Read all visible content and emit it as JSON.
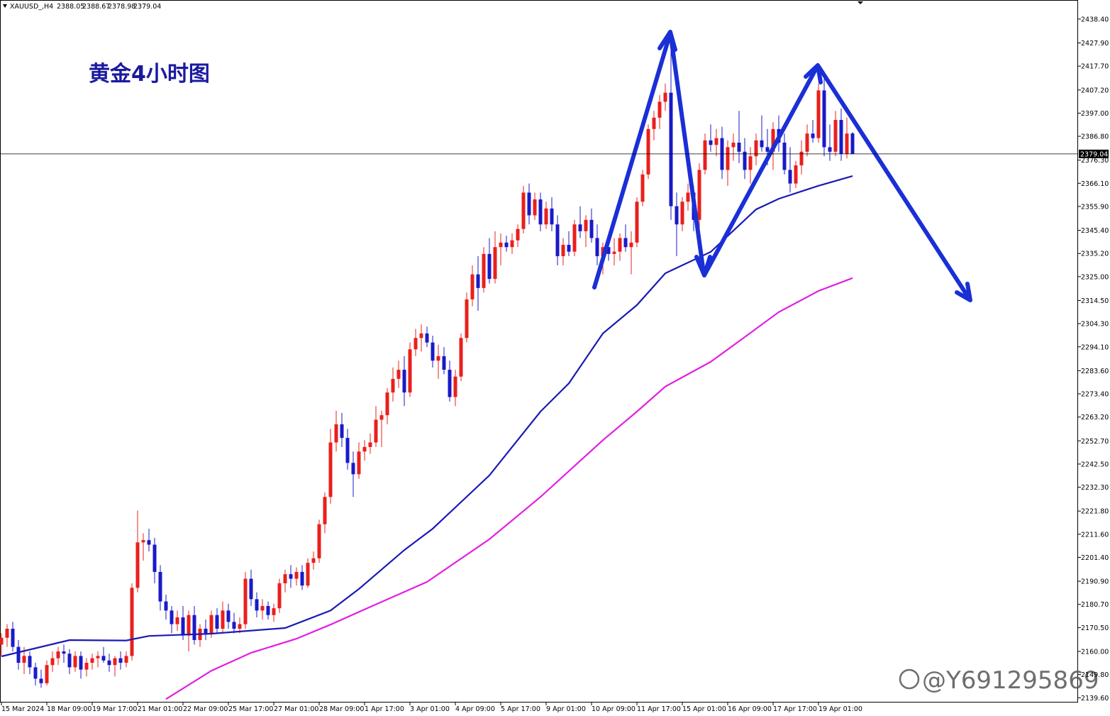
{
  "chart_data": {
    "type": "candlestick",
    "symbol": "XAUUSD_,H4",
    "title": "黄金4小时图",
    "watermark": "@Y691295869",
    "up_color": "#e8201c",
    "down_color": "#1a1ac8",
    "ohlc": [
      [
        2163,
        2168,
        2158,
        2166
      ],
      [
        2166,
        2172,
        2162,
        2170
      ],
      [
        2170,
        2173,
        2160,
        2162
      ],
      [
        2162,
        2165,
        2152,
        2155
      ],
      [
        2155,
        2162,
        2150,
        2158
      ],
      [
        2158,
        2160,
        2150,
        2153
      ],
      [
        2153,
        2155,
        2145,
        2148
      ],
      [
        2148,
        2152,
        2144,
        2146
      ],
      [
        2146,
        2156,
        2145,
        2154
      ],
      [
        2154,
        2160,
        2151,
        2157
      ],
      [
        2157,
        2162,
        2154,
        2160
      ],
      [
        2160,
        2163,
        2155,
        2159
      ],
      [
        2159,
        2161,
        2150,
        2153
      ],
      [
        2153,
        2160,
        2151,
        2158
      ],
      [
        2158,
        2160,
        2148,
        2152
      ],
      [
        2152,
        2157,
        2149,
        2155
      ],
      [
        2155,
        2159,
        2152,
        2157
      ],
      [
        2157,
        2160,
        2153,
        2158
      ],
      [
        2158,
        2162,
        2155,
        2156
      ],
      [
        2156,
        2159,
        2151,
        2154
      ],
      [
        2154,
        2158,
        2149,
        2157
      ],
      [
        2157,
        2160,
        2152,
        2155
      ],
      [
        2155,
        2160,
        2153,
        2158
      ],
      [
        2158,
        2190,
        2156,
        2188
      ],
      [
        2188,
        2222,
        2186,
        2208
      ],
      [
        2208,
        2212,
        2200,
        2209
      ],
      [
        2209,
        2214,
        2204,
        2207
      ],
      [
        2207,
        2210,
        2190,
        2195
      ],
      [
        2195,
        2198,
        2178,
        2182
      ],
      [
        2182,
        2185,
        2174,
        2178
      ],
      [
        2178,
        2180,
        2168,
        2172
      ],
      [
        2172,
        2178,
        2169,
        2175
      ],
      [
        2175,
        2180,
        2165,
        2167
      ],
      [
        2167,
        2178,
        2160,
        2176
      ],
      [
        2176,
        2180,
        2163,
        2165
      ],
      [
        2165,
        2172,
        2162,
        2170
      ],
      [
        2170,
        2174,
        2165,
        2168
      ],
      [
        2168,
        2178,
        2166,
        2176
      ],
      [
        2176,
        2179,
        2168,
        2170
      ],
      [
        2170,
        2182,
        2168,
        2178
      ],
      [
        2178,
        2181,
        2170,
        2173
      ],
      [
        2173,
        2177,
        2168,
        2170
      ],
      [
        2170,
        2175,
        2168,
        2172
      ],
      [
        2172,
        2195,
        2170,
        2192
      ],
      [
        2192,
        2196,
        2180,
        2183
      ],
      [
        2183,
        2186,
        2175,
        2178
      ],
      [
        2178,
        2183,
        2174,
        2180
      ],
      [
        2180,
        2182,
        2174,
        2176
      ],
      [
        2176,
        2181,
        2173,
        2179
      ],
      [
        2179,
        2192,
        2177,
        2190
      ],
      [
        2190,
        2196,
        2186,
        2194
      ],
      [
        2194,
        2198,
        2188,
        2192
      ],
      [
        2192,
        2197,
        2189,
        2195
      ],
      [
        2195,
        2198,
        2187,
        2189
      ],
      [
        2189,
        2201,
        2188,
        2199
      ],
      [
        2199,
        2204,
        2196,
        2201
      ],
      [
        2201,
        2218,
        2199,
        2216
      ],
      [
        2216,
        2230,
        2212,
        2228
      ],
      [
        2228,
        2258,
        2225,
        2252
      ],
      [
        2252,
        2266,
        2248,
        2260
      ],
      [
        2260,
        2265,
        2250,
        2254
      ],
      [
        2254,
        2258,
        2240,
        2243
      ],
      [
        2243,
        2248,
        2228,
        2238
      ],
      [
        2238,
        2252,
        2236,
        2248
      ],
      [
        2248,
        2253,
        2244,
        2250
      ],
      [
        2250,
        2256,
        2247,
        2252
      ],
      [
        2252,
        2268,
        2250,
        2262
      ],
      [
        2262,
        2266,
        2250,
        2264
      ],
      [
        2264,
        2276,
        2260,
        2274
      ],
      [
        2274,
        2285,
        2270,
        2280
      ],
      [
        2280,
        2288,
        2276,
        2284
      ],
      [
        2284,
        2290,
        2268,
        2274
      ],
      [
        2274,
        2296,
        2272,
        2293
      ],
      [
        2293,
        2302,
        2290,
        2298
      ],
      [
        2298,
        2304,
        2292,
        2300
      ],
      [
        2300,
        2303,
        2294,
        2296
      ],
      [
        2296,
        2299,
        2285,
        2288
      ],
      [
        2288,
        2295,
        2280,
        2290
      ],
      [
        2290,
        2294,
        2282,
        2284
      ],
      [
        2284,
        2288,
        2270,
        2272
      ],
      [
        2272,
        2284,
        2268,
        2281
      ],
      [
        2281,
        2300,
        2279,
        2298
      ],
      [
        2298,
        2318,
        2296,
        2315
      ],
      [
        2315,
        2330,
        2312,
        2326
      ],
      [
        2326,
        2334,
        2310,
        2320
      ],
      [
        2320,
        2338,
        2318,
        2335
      ],
      [
        2335,
        2342,
        2322,
        2324
      ],
      [
        2324,
        2345,
        2322,
        2338
      ],
      [
        2338,
        2344,
        2330,
        2340
      ],
      [
        2340,
        2343,
        2336,
        2338
      ],
      [
        2338,
        2344,
        2335,
        2341
      ],
      [
        2341,
        2348,
        2338,
        2346
      ],
      [
        2346,
        2365,
        2344,
        2362
      ],
      [
        2362,
        2366,
        2348,
        2352
      ],
      [
        2352,
        2362,
        2350,
        2359
      ],
      [
        2359,
        2362,
        2345,
        2348
      ],
      [
        2348,
        2358,
        2346,
        2355
      ],
      [
        2355,
        2360,
        2345,
        2348
      ],
      [
        2348,
        2352,
        2330,
        2334
      ],
      [
        2334,
        2342,
        2330,
        2339
      ],
      [
        2339,
        2345,
        2334,
        2336
      ],
      [
        2336,
        2350,
        2334,
        2348
      ],
      [
        2348,
        2356,
        2342,
        2345
      ],
      [
        2345,
        2352,
        2338,
        2350
      ],
      [
        2350,
        2355,
        2340,
        2342
      ],
      [
        2342,
        2348,
        2330,
        2334
      ],
      [
        2334,
        2340,
        2326,
        2338
      ],
      [
        2338,
        2344,
        2332,
        2335
      ],
      [
        2335,
        2342,
        2330,
        2336
      ],
      [
        2336,
        2344,
        2332,
        2342
      ],
      [
        2342,
        2348,
        2336,
        2338
      ],
      [
        2338,
        2345,
        2326,
        2340
      ],
      [
        2340,
        2360,
        2338,
        2358
      ],
      [
        2358,
        2372,
        2356,
        2370
      ],
      [
        2370,
        2392,
        2368,
        2390
      ],
      [
        2390,
        2398,
        2385,
        2395
      ],
      [
        2395,
        2405,
        2390,
        2402
      ],
      [
        2402,
        2410,
        2398,
        2406
      ],
      [
        2406,
        2432,
        2350,
        2356
      ],
      [
        2356,
        2362,
        2334,
        2348
      ],
      [
        2348,
        2360,
        2345,
        2358
      ],
      [
        2358,
        2366,
        2354,
        2362
      ],
      [
        2362,
        2365,
        2345,
        2350
      ],
      [
        2350,
        2375,
        2345,
        2372
      ],
      [
        2372,
        2388,
        2370,
        2385
      ],
      [
        2385,
        2392,
        2380,
        2383
      ],
      [
        2383,
        2390,
        2378,
        2386
      ],
      [
        2386,
        2391,
        2368,
        2372
      ],
      [
        2372,
        2385,
        2365,
        2382
      ],
      [
        2382,
        2388,
        2376,
        2384
      ],
      [
        2384,
        2398,
        2375,
        2380
      ],
      [
        2380,
        2386,
        2368,
        2372
      ],
      [
        2372,
        2382,
        2366,
        2378
      ],
      [
        2378,
        2388,
        2374,
        2385
      ],
      [
        2385,
        2396,
        2380,
        2382
      ],
      [
        2382,
        2390,
        2374,
        2380
      ],
      [
        2380,
        2393,
        2372,
        2390
      ],
      [
        2390,
        2396,
        2380,
        2384
      ],
      [
        2384,
        2388,
        2370,
        2372
      ],
      [
        2372,
        2382,
        2362,
        2366
      ],
      [
        2366,
        2376,
        2364,
        2374
      ],
      [
        2374,
        2385,
        2370,
        2380
      ],
      [
        2380,
        2392,
        2378,
        2388
      ],
      [
        2388,
        2394,
        2384,
        2386
      ],
      [
        2386,
        2410,
        2384,
        2407
      ],
      [
        2407,
        2412,
        2378,
        2382
      ],
      [
        2382,
        2392,
        2376,
        2380
      ],
      [
        2380,
        2398,
        2378,
        2394
      ],
      [
        2394,
        2399,
        2376,
        2379
      ],
      [
        2379,
        2395,
        2377,
        2388
      ],
      [
        2388.05,
        2388.67,
        2378.98,
        2379.04
      ]
    ],
    "series": [
      {
        "color": "#1a1ab4",
        "x": [
          0,
          12,
          22,
          26,
          37,
          50,
          58,
          63,
          71,
          76,
          86,
          95,
          100,
          106,
          112,
          117,
          125,
          133,
          137,
          144,
          150
        ],
        "values": [
          2157.8,
          2165,
          2164.8,
          2166.8,
          2167.8,
          2170.3,
          2178,
          2187.5,
          2204.6,
          2214,
          2237.5,
          2265.6,
          2278,
          2300,
          2312.5,
          2326.5,
          2335.9,
          2354.6,
          2359.3,
          2365,
          2369.3
        ]
      },
      {
        "color": "#e020e0",
        "x": [
          29,
          37,
          44,
          52,
          58,
          65,
          75,
          86,
          95,
          106,
          112,
          117,
          125,
          131,
          137,
          144,
          150
        ],
        "values": [
          2139,
          2151.5,
          2159.4,
          2165.6,
          2171.8,
          2179.6,
          2190.6,
          2209.4,
          2228,
          2253,
          2265.6,
          2276.6,
          2287.5,
          2298.4,
          2309.4,
          2318.7,
          2324.4
        ]
      }
    ],
    "xlim": [
      -0.25,
      189.75
    ],
    "xticks": [
      {
        "value": 0,
        "label": "15 Mar 2024"
      },
      {
        "value": 8,
        "label": "18 Mar 09:00"
      },
      {
        "value": 16,
        "label": "19 Mar 17:00"
      },
      {
        "value": 24,
        "label": "21 Mar 01:00"
      },
      {
        "value": 32,
        "label": "22 Mar 09:00"
      },
      {
        "value": 40,
        "label": "25 Mar 17:00"
      },
      {
        "value": 48,
        "label": "27 Mar 01:00"
      },
      {
        "value": 56,
        "label": "28 Mar 09:00"
      },
      {
        "value": 64,
        "label": "1 Apr 17:00"
      },
      {
        "value": 72,
        "label": "3 Apr 01:00"
      },
      {
        "value": 80,
        "label": "4 Apr 09:00"
      },
      {
        "value": 88,
        "label": "5 Apr 17:00"
      },
      {
        "value": 96,
        "label": "9 Apr 01:00"
      },
      {
        "value": 104,
        "label": "10 Apr 09:00"
      },
      {
        "value": 112,
        "label": "11 Apr 17:00"
      },
      {
        "value": 120,
        "label": "15 Apr 01:00"
      },
      {
        "value": 128,
        "label": "16 Apr 09:00"
      },
      {
        "value": 136,
        "label": "17 Apr 17:00"
      },
      {
        "value": 144,
        "label": "19 Apr 01:00"
      }
    ],
    "ylim": [
      2137.5,
      2446.8
    ],
    "yticks": [
      {
        "value": 2438.4,
        "label": "2438.40"
      },
      {
        "value": 2427.9,
        "label": "2427.90"
      },
      {
        "value": 2417.7,
        "label": "2417.70"
      },
      {
        "value": 2407.2,
        "label": "2407.20"
      },
      {
        "value": 2397,
        "label": "2397.00"
      },
      {
        "value": 2386.8,
        "label": "2386.80"
      },
      {
        "value": 2376.3,
        "label": "2376.30"
      },
      {
        "value": 2366.1,
        "label": "2366.10"
      },
      {
        "value": 2355.9,
        "label": "2355.90"
      },
      {
        "value": 2345.4,
        "label": "2345.40"
      },
      {
        "value": 2335.2,
        "label": "2335.20"
      },
      {
        "value": 2325,
        "label": "2325.00"
      },
      {
        "value": 2314.5,
        "label": "2314.50"
      },
      {
        "value": 2304.3,
        "label": "2304.30"
      },
      {
        "value": 2294.1,
        "label": "2294.10"
      },
      {
        "value": 2283.6,
        "label": "2283.60"
      },
      {
        "value": 2273.4,
        "label": "2273.40"
      },
      {
        "value": 2263.2,
        "label": "2263.20"
      },
      {
        "value": 2252.7,
        "label": "2252.70"
      },
      {
        "value": 2242.5,
        "label": "2242.50"
      },
      {
        "value": 2232.3,
        "label": "2232.30"
      },
      {
        "value": 2221.8,
        "label": "2221.80"
      },
      {
        "value": 2211.6,
        "label": "2211.60"
      },
      {
        "value": 2201.4,
        "label": "2201.40"
      },
      {
        "value": 2190.9,
        "label": "2190.90"
      },
      {
        "value": 2180.7,
        "label": "2180.70"
      },
      {
        "value": 2170.5,
        "label": "2170.50"
      },
      {
        "value": 2160,
        "label": "2160.00"
      },
      {
        "value": 2149.8,
        "label": "2149.80"
      },
      {
        "value": 2139.6,
        "label": "2139.60"
      }
    ]
  }
}
